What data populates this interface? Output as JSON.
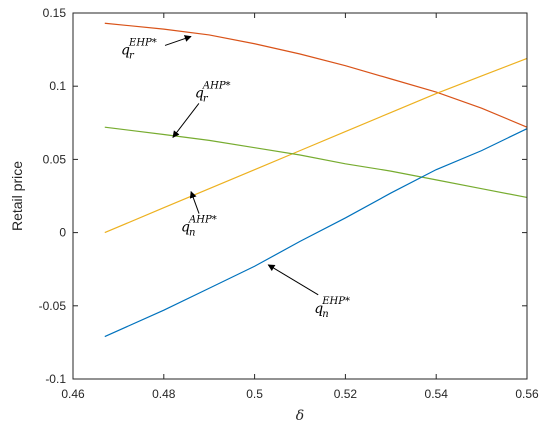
{
  "chart_data": {
    "type": "line",
    "title": "",
    "xlabel": "δ",
    "ylabel": "Retail price",
    "xlim": [
      0.46,
      0.56
    ],
    "ylim": [
      -0.1,
      0.15
    ],
    "xticks": [
      0.46,
      0.48,
      0.5,
      0.52,
      0.54,
      0.56
    ],
    "xtick_labels": [
      "0.46",
      "0.48",
      "0.5",
      "0.52",
      "0.54",
      "0.56"
    ],
    "yticks": [
      -0.1,
      -0.05,
      0,
      0.05,
      0.1,
      0.15
    ],
    "ytick_labels": [
      "-0.1",
      "-0.05",
      "0",
      "0.05",
      "0.1",
      "0.15"
    ],
    "grid": false,
    "x": [
      0.467,
      0.48,
      0.49,
      0.5,
      0.51,
      0.52,
      0.53,
      0.54,
      0.55,
      0.56
    ],
    "series": [
      {
        "name": "",
        "color": "#d95319",
        "values": [
          0.143,
          0.139,
          0.135,
          0.129,
          0.122,
          0.114,
          0.105,
          0.096,
          0.085,
          0.072
        ]
      },
      {
        "name": "",
        "color": "#edb120",
        "values": [
          0.0,
          0.017,
          0.03,
          0.043,
          0.056,
          0.069,
          0.082,
          0.095,
          0.107,
          0.119
        ]
      },
      {
        "name": "",
        "color": "#77ac30",
        "values": [
          0.072,
          0.067,
          0.063,
          0.058,
          0.053,
          0.047,
          0.042,
          0.036,
          0.03,
          0.024
        ]
      },
      {
        "name": "",
        "color": "#0072bd",
        "values": [
          -0.071,
          -0.053,
          -0.038,
          -0.023,
          -0.006,
          0.01,
          0.027,
          0.043,
          0.056,
          0.071
        ]
      }
    ],
    "annotations": [
      {
        "main": "q",
        "sub": "r",
        "sup": "EHP*",
        "arrow_tip": [
          0.486,
          0.134
        ]
      },
      {
        "main": "q",
        "sub": "r",
        "sup": "AHP*",
        "arrow_tip": [
          0.482,
          0.065
        ]
      },
      {
        "main": "q",
        "sub": "n",
        "sup": "AHP*",
        "arrow_tip": [
          0.486,
          0.028
        ]
      },
      {
        "main": "q",
        "sub": "n",
        "sup": "EHP*",
        "arrow_tip": [
          0.503,
          -0.022
        ]
      }
    ]
  }
}
